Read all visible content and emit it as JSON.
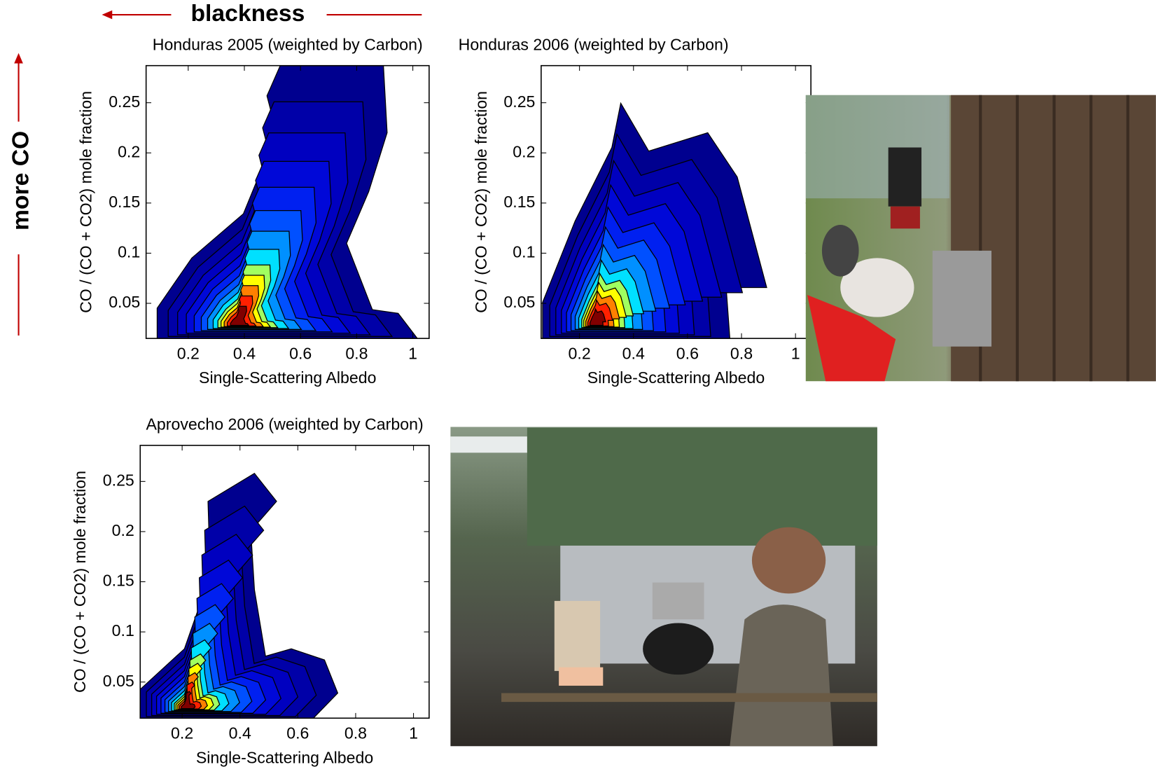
{
  "annotations": {
    "x_arrow": "blackness",
    "y_arrow": "more CO"
  },
  "chart_data": [
    {
      "type": "contour",
      "title": "Honduras 2005 (weighted by Carbon)",
      "xlabel": "Single-Scattering Albedo",
      "ylabel": "CO / (CO + CO2) mole fraction",
      "xlim": [
        0.05,
        1.058
      ],
      "ylim": [
        0.015,
        0.287
      ],
      "xticks": [
        0.2,
        0.4,
        0.6,
        0.8,
        1
      ],
      "yticks": [
        0.05,
        0.1,
        0.15,
        0.2,
        0.25
      ]
    },
    {
      "type": "contour",
      "title": "Honduras 2006 (weighted by Carbon)",
      "xlabel": "Single-Scattering Albedo",
      "ylabel": "CO / (CO + CO2) mole fraction",
      "xlim": [
        0.058,
        1.057
      ],
      "ylim": [
        0.015,
        0.287
      ],
      "xticks": [
        0.2,
        0.4,
        0.6,
        0.8,
        1
      ],
      "yticks": [
        0.05,
        0.1,
        0.15,
        0.2,
        0.25
      ]
    },
    {
      "type": "contour",
      "title": "Aprovecho 2006 (weighted by Carbon)",
      "xlabel": "Single-Scattering Albedo",
      "ylabel": "CO / (CO + CO2) mole fraction",
      "xlim": [
        0.055,
        1.054
      ],
      "ylim": [
        0.014,
        0.286
      ],
      "xticks": [
        0.2,
        0.4,
        0.6,
        0.8,
        1
      ],
      "yticks": [
        0.05,
        0.1,
        0.15,
        0.2,
        0.25
      ]
    }
  ]
}
